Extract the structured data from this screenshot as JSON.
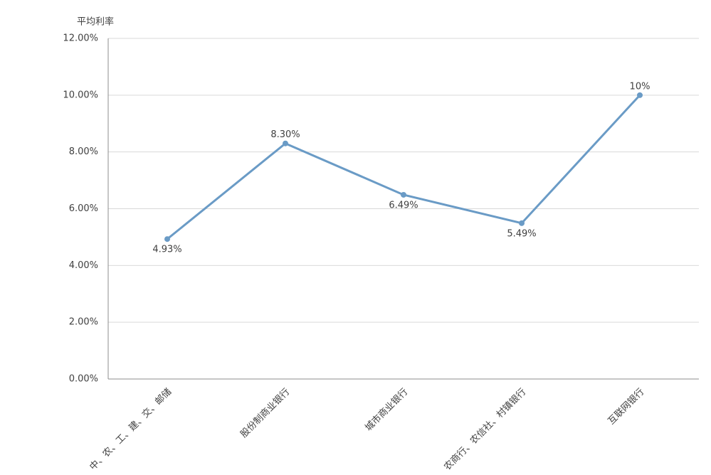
{
  "chart_data": {
    "type": "line",
    "y_label": "平均利率",
    "categories": [
      "中、农、工、建、交、邮储",
      "股份制商业银行",
      "城市商业银行",
      "农商行、农信社、村镇银行",
      "互联网银行"
    ],
    "series": [
      {
        "name": "平均利率",
        "color": "#6a9bc6",
        "values": [
          4.93,
          8.3,
          6.49,
          5.49,
          10
        ],
        "value_labels": [
          "4.93%",
          "8.30%",
          "6.49%",
          "5.49%",
          "10%"
        ]
      }
    ],
    "ylim": [
      0,
      12
    ],
    "yticks": [
      {
        "value": 0,
        "label": "0.00%"
      },
      {
        "value": 2,
        "label": "2.00%"
      },
      {
        "value": 4,
        "label": "4.00%"
      },
      {
        "value": 6,
        "label": "6.00%"
      },
      {
        "value": 8,
        "label": "8.00%"
      },
      {
        "value": 10,
        "label": "10.00%"
      },
      {
        "value": 12,
        "label": "12.00%"
      }
    ],
    "grid": true
  }
}
